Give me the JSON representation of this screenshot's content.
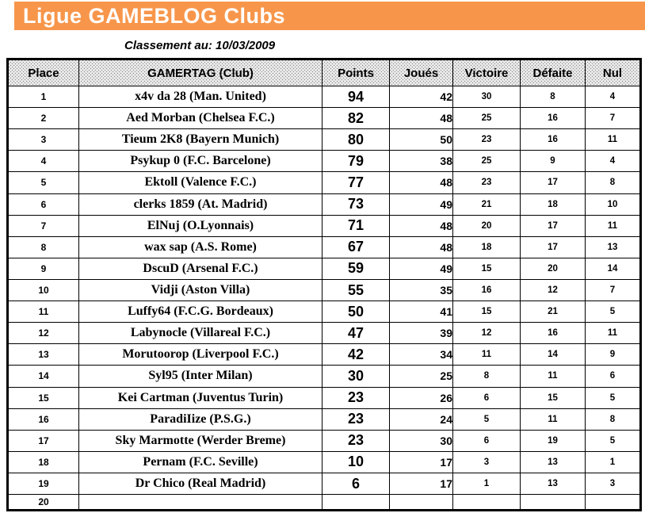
{
  "title": "Ligue GAMEBLOG Clubs",
  "subtitle": "Classement au: 10/03/2009",
  "colors": {
    "banner_background": "#F7964B",
    "banner_text": "#FFFFFF",
    "table_border": "#000000"
  },
  "table": {
    "headers": [
      "Place",
      "GAMERTAG (Club)",
      "Points",
      "Joués",
      "Victoire",
      "Défaite",
      "Nul"
    ],
    "rows": [
      {
        "place": "1",
        "gamertag": "x4v da 28 (Man. United)",
        "points": "94",
        "joues": "42",
        "victoire": "30",
        "defaite": "8",
        "nul": "4"
      },
      {
        "place": "2",
        "gamertag": "Aed Morban (Chelsea F.C.)",
        "points": "82",
        "joues": "48",
        "victoire": "25",
        "defaite": "16",
        "nul": "7"
      },
      {
        "place": "3",
        "gamertag": "Tieum 2K8 (Bayern Munich)",
        "points": "80",
        "joues": "50",
        "victoire": "23",
        "defaite": "16",
        "nul": "11"
      },
      {
        "place": "4",
        "gamertag": "Psykup 0 (F.C. Barcelone)",
        "points": "79",
        "joues": "38",
        "victoire": "25",
        "defaite": "9",
        "nul": "4"
      },
      {
        "place": "5",
        "gamertag": "Ektoll (Valence F.C.)",
        "points": "77",
        "joues": "48",
        "victoire": "23",
        "defaite": "17",
        "nul": "8"
      },
      {
        "place": "6",
        "gamertag": "clerks 1859 (At. Madrid)",
        "points": "73",
        "joues": "49",
        "victoire": "21",
        "defaite": "18",
        "nul": "10"
      },
      {
        "place": "7",
        "gamertag": "ElNuj (O.Lyonnais)",
        "points": "71",
        "joues": "48",
        "victoire": "20",
        "defaite": "17",
        "nul": "11"
      },
      {
        "place": "8",
        "gamertag": "wax sap (A.S. Rome)",
        "points": "67",
        "joues": "48",
        "victoire": "18",
        "defaite": "17",
        "nul": "13"
      },
      {
        "place": "9",
        "gamertag": "DscuD (Arsenal F.C.)",
        "points": "59",
        "joues": "49",
        "victoire": "15",
        "defaite": "20",
        "nul": "14"
      },
      {
        "place": "10",
        "gamertag": "Vidji (Aston Villa)",
        "points": "55",
        "joues": "35",
        "victoire": "16",
        "defaite": "12",
        "nul": "7"
      },
      {
        "place": "11",
        "gamertag": "Luffy64 (F.C.G. Bordeaux)",
        "points": "50",
        "joues": "41",
        "victoire": "15",
        "defaite": "21",
        "nul": "5"
      },
      {
        "place": "12",
        "gamertag": "Labynocle (Villareal F.C.)",
        "points": "47",
        "joues": "39",
        "victoire": "12",
        "defaite": "16",
        "nul": "11"
      },
      {
        "place": "13",
        "gamertag": "Morutoorop (Liverpool F.C.)",
        "points": "42",
        "joues": "34",
        "victoire": "11",
        "defaite": "14",
        "nul": "9"
      },
      {
        "place": "14",
        "gamertag": "Syl95 (Inter Milan)",
        "points": "30",
        "joues": "25",
        "victoire": "8",
        "defaite": "11",
        "nul": "6"
      },
      {
        "place": "15",
        "gamertag": "Kei Cartman (Juventus Turin)",
        "points": "23",
        "joues": "26",
        "victoire": "6",
        "defaite": "15",
        "nul": "5"
      },
      {
        "place": "16",
        "gamertag": "ParadiIize (P.S.G.)",
        "points": "23",
        "joues": "24",
        "victoire": "5",
        "defaite": "11",
        "nul": "8"
      },
      {
        "place": "17",
        "gamertag": "Sky Marmotte (Werder Breme)",
        "points": "23",
        "joues": "30",
        "victoire": "6",
        "defaite": "19",
        "nul": "5"
      },
      {
        "place": "18",
        "gamertag": "Pernam (F.C. Seville)",
        "points": "10",
        "joues": "17",
        "victoire": "3",
        "defaite": "13",
        "nul": "1"
      },
      {
        "place": "19",
        "gamertag": "Dr Chico (Real Madrid)",
        "points": "6",
        "joues": "17",
        "victoire": "1",
        "defaite": "13",
        "nul": "3"
      },
      {
        "place": "20",
        "gamertag": "",
        "points": "",
        "joues": "",
        "victoire": "",
        "defaite": "",
        "nul": ""
      }
    ]
  }
}
